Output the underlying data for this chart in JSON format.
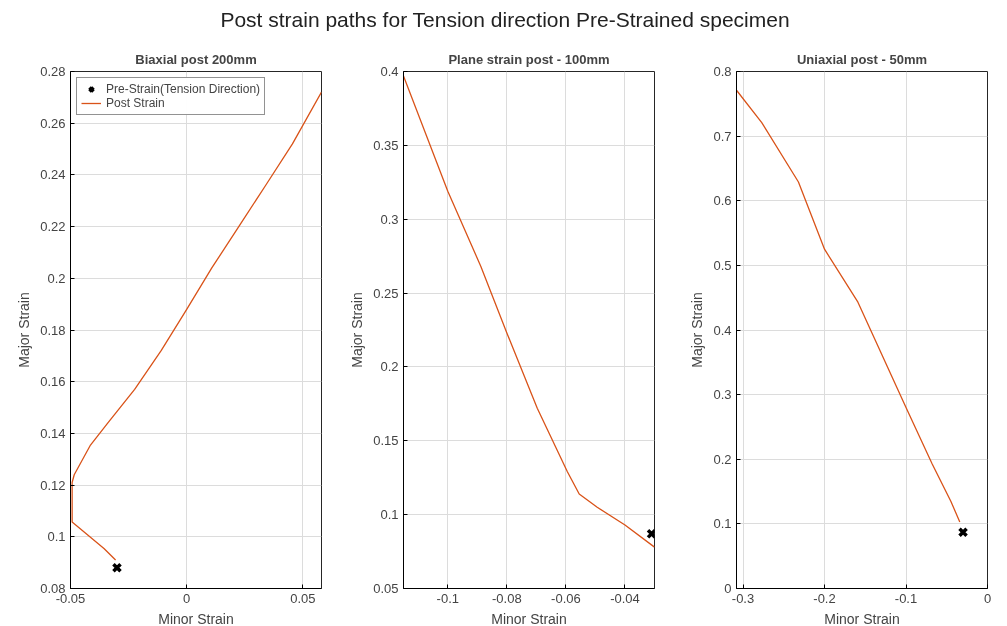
{
  "chart_data": [
    {
      "type": "line",
      "title": "Post strain paths for Tension direction Pre-Strained specimen",
      "subtitle": "Biaxial post 200mm",
      "xlabel": "Minor Strain",
      "ylabel": "Major Strain",
      "xlim": [
        -0.05,
        0.058
      ],
      "ylim": [
        0.08,
        0.28
      ],
      "xticks": [
        -0.05,
        0,
        0.05
      ],
      "yticks": [
        0.08,
        0.1,
        0.12,
        0.14,
        0.16,
        0.18,
        0.2,
        0.22,
        0.24,
        0.26,
        0.28
      ],
      "grid": true,
      "legend": "top left",
      "series": [
        {
          "name": "Pre-Strain(Tension Direction)",
          "type": "scatter",
          "marker": "cross",
          "color": "#000000",
          "x": [
            -0.03
          ],
          "values": [
            0.088
          ]
        },
        {
          "name": "Post Strain",
          "color": "#d95319",
          "x": [
            -0.0306,
            -0.0356,
            -0.0493,
            -0.0493,
            -0.0484,
            -0.0414,
            -0.034,
            -0.0224,
            -0.011,
            0,
            0.0108,
            0.0224,
            0.034,
            0.0455,
            0.058
          ],
          "values": [
            0.091,
            0.0955,
            0.1057,
            0.121,
            0.124,
            0.1355,
            0.144,
            0.157,
            0.172,
            0.188,
            0.204,
            0.22,
            0.236,
            0.252,
            0.272
          ]
        }
      ]
    },
    {
      "type": "line",
      "title": "Plane strain post - 100mm",
      "xlabel": "Minor Strain",
      "ylabel": "Major Strain",
      "xlim": [
        -0.115,
        -0.03
      ],
      "ylim": [
        0.05,
        0.4
      ],
      "xticks": [
        -0.1,
        -0.08,
        -0.06,
        -0.04
      ],
      "yticks": [
        0.05,
        0.1,
        0.15,
        0.2,
        0.25,
        0.3,
        0.35,
        0.4
      ],
      "grid": true,
      "series": [
        {
          "type": "scatter",
          "marker": "cross",
          "color": "#000000",
          "x": [
            -0.031
          ],
          "values": [
            0.087
          ]
        },
        {
          "color": "#d95319",
          "x": [
            -0.115,
            -0.1,
            -0.0888,
            -0.08,
            -0.0697,
            -0.0595,
            -0.0555,
            -0.0494,
            -0.04,
            -0.03
          ],
          "values": [
            0.397,
            0.319,
            0.268,
            0.223,
            0.172,
            0.129,
            0.114,
            0.105,
            0.093,
            0.078
          ]
        }
      ]
    },
    {
      "type": "line",
      "title": "Uniaxial post - 50mm",
      "xlabel": "Minor Strain",
      "ylabel": "Major Strain",
      "xlim": [
        -0.308,
        0
      ],
      "ylim": [
        0,
        0.8
      ],
      "xticks": [
        -0.3,
        -0.2,
        -0.1,
        0
      ],
      "yticks": [
        0,
        0.1,
        0.2,
        0.3,
        0.4,
        0.5,
        0.6,
        0.7,
        0.8
      ],
      "grid": true,
      "series": [
        {
          "type": "scatter",
          "marker": "cross",
          "color": "#000000",
          "x": [
            -0.03
          ],
          "values": [
            0.087
          ]
        },
        {
          "color": "#d95319",
          "x": [
            -0.308,
            -0.277,
            -0.232,
            -0.2,
            -0.159,
            -0.1,
            -0.068,
            -0.045,
            -0.034
          ],
          "values": [
            0.771,
            0.721,
            0.629,
            0.525,
            0.443,
            0.28,
            0.193,
            0.135,
            0.103
          ]
        }
      ]
    }
  ]
}
